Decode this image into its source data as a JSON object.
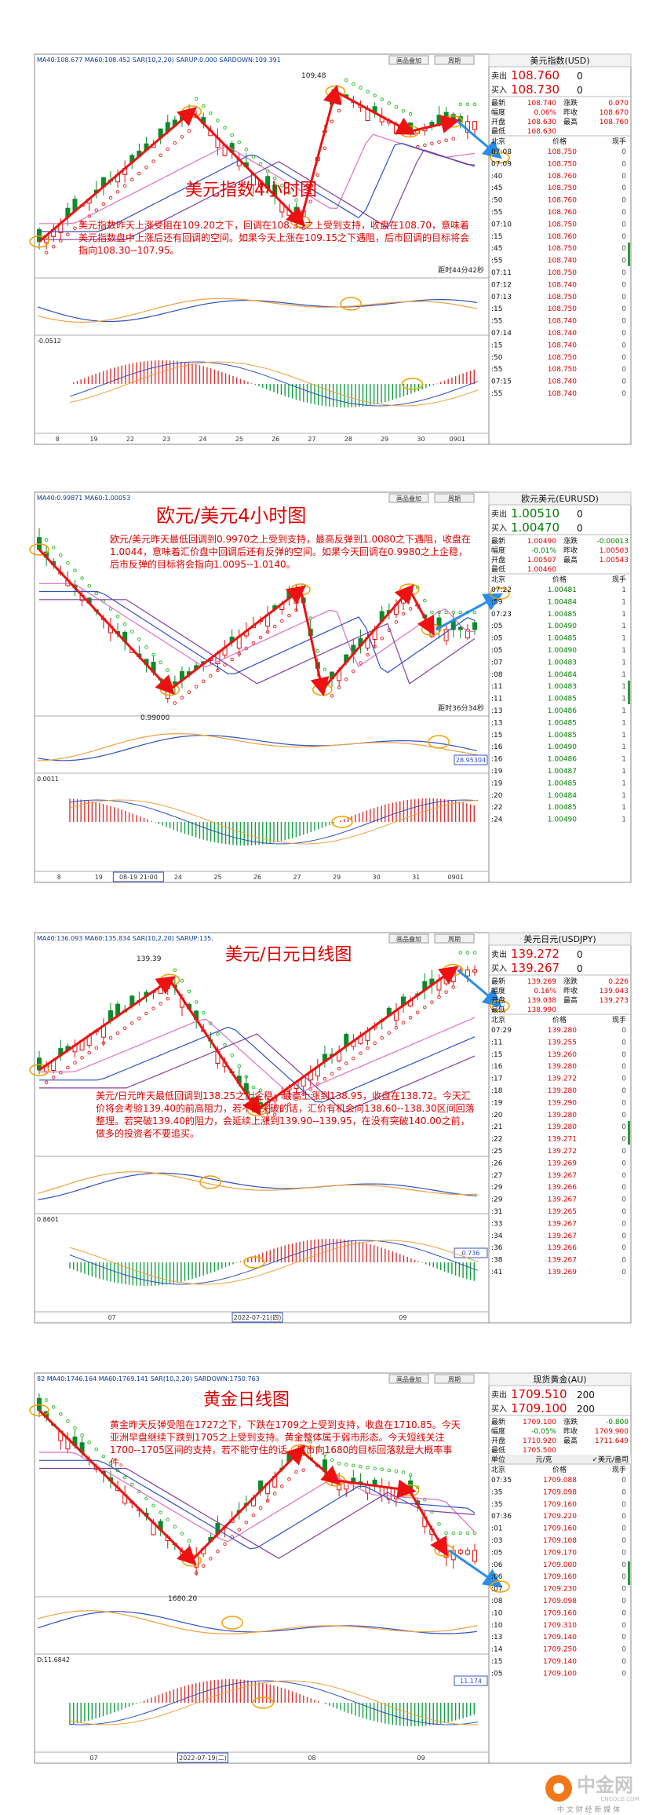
{
  "panels": [
    {
      "indicator_line": "MA40:108.677  MA60:108.452  SAR(10,2,20)  SARUP:0.000  SARDOWN:109.391",
      "buttons": [
        "画品叠加",
        "周期"
      ],
      "title": "美元指数4小时图",
      "annotation": "美元指数昨天上涨受阻在109.20之下，回调在108.35之上受到支持，收盘在108.70，意味着美元指数盘中上涨后还有回调的空间。如果今天上涨在109.15之下遇阻，后市回调的目标将会指向108.30--107.95。",
      "price_label": "109.48",
      "timer": "距时44分42秒",
      "osc_label": "-0.0512",
      "x_labels": [
        "8",
        "19",
        "22",
        "23",
        "24",
        "25",
        "26",
        "27",
        "28",
        "29",
        "30",
        "0901"
      ],
      "quote": {
        "name": "美元指数(USD)",
        "price_color": "#e00000",
        "sell": [
          "卖出",
          "108.760",
          "0"
        ],
        "buy": [
          "买入",
          "108.730",
          "0"
        ],
        "stats": [
          [
            "最新",
            "108.740",
            "涨跌",
            "0.070"
          ],
          [
            "幅度",
            "0.06%",
            "昨收",
            "108.670"
          ],
          [
            "开盘",
            "108.630",
            "最高",
            "108.760"
          ],
          [
            "最低",
            "108.630"
          ]
        ],
        "head": [
          "北京",
          "价格",
          "现手"
        ],
        "ticks": [
          [
            "07:08",
            "108.750",
            "0"
          ],
          [
            "07:09",
            "108.750",
            "0"
          ],
          [
            ":40",
            "108.760",
            "0"
          ],
          [
            ":45",
            "108.750",
            "0"
          ],
          [
            ":50",
            "108.760",
            "0"
          ],
          [
            ":55",
            "108.760",
            "0"
          ],
          [
            "07:10",
            "108.750",
            "0"
          ],
          [
            ":15",
            "108.760",
            "0"
          ],
          [
            ":45",
            "108.750",
            "0"
          ],
          [
            ":55",
            "108.740",
            "0"
          ],
          [
            "07:11",
            "108.750",
            "0"
          ],
          [
            "07:12",
            "108.740",
            "0"
          ],
          [
            "07:13",
            "108.750",
            "0"
          ],
          [
            ":15",
            "108.750",
            "0"
          ],
          [
            ":55",
            "108.740",
            "0"
          ],
          [
            "07:14",
            "108.740",
            "0"
          ],
          [
            ":15",
            "108.740",
            "0"
          ],
          [
            ":50",
            "108.750",
            "0"
          ],
          [
            ":55",
            "108.750",
            "0"
          ],
          [
            "07:15",
            "108.740",
            "0"
          ],
          [
            ":55",
            "108.740",
            "0"
          ]
        ]
      }
    },
    {
      "indicator_line": "MA40:0.99871  MA60:1.00053",
      "buttons": [
        "画品叠加",
        "周期"
      ],
      "title": "欧元/美元4小时图",
      "annotation": "欧元/美元昨天最低回调到0.9970之上受到支持，最高反弹到1.0080之下遇阻，收盘在1.0044，意味着汇价盘中回调后还有反弹的空间。如果今天回调在0.9980之上企稳，后市反弹的目标将会指向1.0095--1.0140。",
      "price_label": "0.99000",
      "timer": "距时36分34秒",
      "side_value": "28.95304",
      "osc_label": "0.0011",
      "x_labels": [
        "8",
        "19",
        "08-19 21:00",
        "24",
        "25",
        "26",
        "27",
        "29",
        "30",
        "31",
        "0901"
      ],
      "quote": {
        "name": "欧元美元(EURUSD)",
        "price_color": "#008000",
        "sell": [
          "卖出",
          "1.00510",
          "0"
        ],
        "buy": [
          "买入",
          "1.00470",
          "0"
        ],
        "stats": [
          [
            "最新",
            "1.00490",
            "涨跌",
            "-0.00013"
          ],
          [
            "幅度",
            "-0.01%",
            "昨收",
            "1.00503"
          ],
          [
            "开盘",
            "1.00507",
            "最高",
            "1.00543"
          ],
          [
            "最低",
            "1.00460"
          ]
        ],
        "head": [
          "北京",
          "价格",
          "现手"
        ],
        "ticks": [
          [
            "07:22",
            "1.00481",
            "1"
          ],
          [
            ":59",
            "1.00484",
            "1"
          ],
          [
            "07:23",
            "1.00485",
            "1"
          ],
          [
            ":05",
            "1.00490",
            "1"
          ],
          [
            ":05",
            "1.00485",
            "1"
          ],
          [
            ":05",
            "1.00490",
            "1"
          ],
          [
            ":07",
            "1.00483",
            "1"
          ],
          [
            ":08",
            "1.00484",
            "1"
          ],
          [
            ":11",
            "1.00483",
            "1"
          ],
          [
            ":11",
            "1.00485",
            "1"
          ],
          [
            ":13",
            "1.00486",
            "1"
          ],
          [
            ":13",
            "1.00485",
            "1"
          ],
          [
            ":15",
            "1.00485",
            "1"
          ],
          [
            ":16",
            "1.00490",
            "1"
          ],
          [
            ":16",
            "1.00486",
            "1"
          ],
          [
            ":19",
            "1.00487",
            "1"
          ],
          [
            ":19",
            "1.00485",
            "1"
          ],
          [
            ":20",
            "1.00484",
            "1"
          ],
          [
            ":22",
            "1.00485",
            "1"
          ],
          [
            ":24",
            "1.00490",
            "1"
          ]
        ]
      }
    },
    {
      "indicator_line": "MA40:136.093  MA60:135.834  SAR(10,2,20)  SARUP:135.",
      "buttons": [
        "画品叠加",
        "周期"
      ],
      "title": "美元/日元日线图",
      "annotation": "美元/日元昨天最低回调到138.25之上企稳，最高上涨到138.95，收盘在138.72。今天汇价将会考验139.40的前高阻力，若不能突破的话，汇价有机会向138.60--138.30区间回落整理。若突破139.40的阻力，会延续上涨到139.90--139.95，在没有突破140.00之前，做多的投资者不要追买。",
      "price_label": "139.39",
      "side_value": "0.736",
      "osc_label": "0.8601",
      "x_labels": [
        "07",
        "2022-07-21(四)",
        "09"
      ],
      "quote": {
        "name": "美元日元(USDJPY)",
        "price_color": "#e00000",
        "sell": [
          "卖出",
          "139.272",
          "0"
        ],
        "buy": [
          "买入",
          "139.267",
          "0"
        ],
        "stats": [
          [
            "最新",
            "139.269",
            "涨跌",
            "0.226"
          ],
          [
            "幅度",
            "0.16%",
            "昨收",
            "139.043"
          ],
          [
            "开盘",
            "139.038",
            "最高",
            "139.273"
          ],
          [
            "最低",
            "138.990"
          ]
        ],
        "head": [
          "北京",
          "价格",
          "现手"
        ],
        "ticks": [
          [
            "07:29",
            "139.280",
            "0"
          ],
          [
            ":11",
            "139.255",
            "0"
          ],
          [
            ":15",
            "139.260",
            "0"
          ],
          [
            ":16",
            "139.280",
            "0"
          ],
          [
            ":17",
            "139.272",
            "0"
          ],
          [
            ":18",
            "139.280",
            "0"
          ],
          [
            ":19",
            "139.290",
            "0"
          ],
          [
            ":20",
            "139.280",
            "0"
          ],
          [
            ":21",
            "139.280",
            "0"
          ],
          [
            ":22",
            "139.271",
            "0"
          ],
          [
            ":25",
            "139.272",
            "0"
          ],
          [
            ":26",
            "139.269",
            "0"
          ],
          [
            ":27",
            "139.267",
            "0"
          ],
          [
            ":29",
            "139.266",
            "0"
          ],
          [
            ":29",
            "139.267",
            "0"
          ],
          [
            ":31",
            "139.265",
            "0"
          ],
          [
            ":33",
            "139.267",
            "0"
          ],
          [
            ":34",
            "139.267",
            "0"
          ],
          [
            ":36",
            "139.266",
            "0"
          ],
          [
            ":38",
            "139.267",
            "0"
          ],
          [
            ":41",
            "139.269",
            "0"
          ]
        ]
      }
    },
    {
      "indicator_line": "82 MA40:1746.164  MA60:1769.141  SAR(10,2,20)  SARDOWN:1750.763",
      "buttons": [
        "画品叠加",
        "周期"
      ],
      "title": "黄金日线图",
      "annotation": "黄金昨天反弹受阻在1727之下，下跌在1709之上受到支持，收盘在1710.85。今天亚洲早盘继续下跌到1705之上受到支持。黄金整体属于弱市形态。今天短线关注1700--1705区间的支持，若不能守住的话，后市向1680的目标回落就是大概率事件。",
      "price_label": "1680.20",
      "side_value": "11.174",
      "osc_label": "D:11.6842",
      "x_labels": [
        "07",
        "2022-07-19(二)",
        "08",
        "09"
      ],
      "quote": {
        "name": "现货黄金(AU)",
        "price_color": "#e00000",
        "sell": [
          "卖出",
          "1709.510",
          "200"
        ],
        "buy": [
          "买入",
          "1709.100",
          "200"
        ],
        "stats": [
          [
            "最新",
            "1709.100",
            "涨跌",
            "-0.800"
          ],
          [
            "幅度",
            "-0.05%",
            "昨收",
            "1709.900"
          ],
          [
            "开盘",
            "1710.920",
            "最高",
            "1711.649"
          ],
          [
            "最低",
            "1705.500"
          ]
        ],
        "unit_row": [
          "单位",
          "元/克",
          "✓美元/盎司"
        ],
        "head": [
          "北京",
          "价格",
          "现手"
        ],
        "ticks": [
          [
            "07:35",
            "1709.088",
            "0"
          ],
          [
            ":35",
            "1709.098",
            "0"
          ],
          [
            ":35",
            "1709.160",
            "0"
          ],
          [
            "07:36",
            "1709.220",
            "0"
          ],
          [
            ":01",
            "1709.160",
            "0"
          ],
          [
            ":03",
            "1709.108",
            "0"
          ],
          [
            ":05",
            "1709.170",
            "0"
          ],
          [
            ":06",
            "1709.000",
            "0"
          ],
          [
            ":06",
            "1709.160",
            "0"
          ],
          [
            ":07",
            "1709.230",
            "0"
          ],
          [
            ":08",
            "1709.098",
            "0"
          ],
          [
            ":10",
            "1709.160",
            "0"
          ],
          [
            ":10",
            "1709.310",
            "0"
          ],
          [
            ":13",
            "1709.140",
            "0"
          ],
          [
            ":14",
            "1709.250",
            "0"
          ],
          [
            ":15",
            "1709.140",
            "0"
          ],
          [
            ":05",
            "1709.100",
            "0"
          ]
        ]
      }
    }
  ],
  "logo": {
    "name": "中金网",
    "domain": "CNGOLD.COM",
    "slogan": "中 文 财 经 新 媒 体"
  }
}
